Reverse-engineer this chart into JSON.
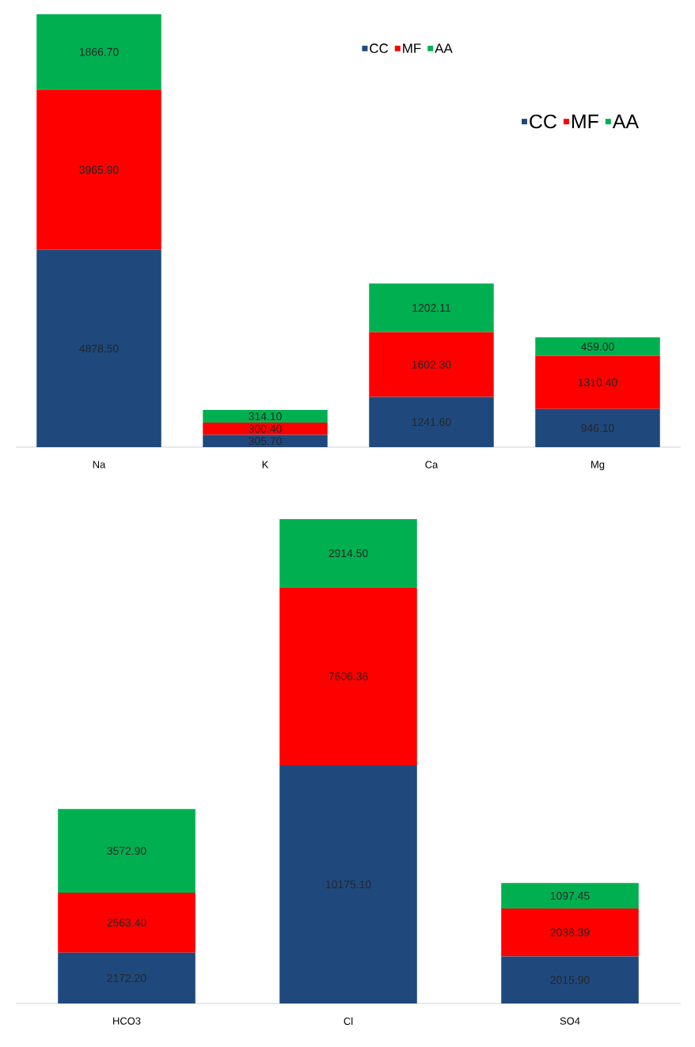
{
  "chart_data": [
    {
      "type": "bar",
      "stacked": true,
      "legend": "top",
      "categories": [
        "Na",
        "K",
        "Ca",
        "Mg"
      ],
      "series": [
        {
          "name": "CC",
          "color": "#1f497d",
          "values": [
            4878.5,
            305.7,
            1241.6,
            946.1
          ],
          "value_labels": [
            "4878.50",
            "305.70",
            "1241.60",
            "946.10"
          ]
        },
        {
          "name": "MF",
          "color": "#ff0000",
          "values": [
            3965.9,
            300.4,
            1602.3,
            1310.4
          ],
          "value_labels": [
            "3965.90",
            "300.40",
            "1602.30",
            "1310.40"
          ]
        },
        {
          "name": "AA",
          "color": "#00b050",
          "values": [
            1866.7,
            314.1,
            1202.11,
            459.0
          ],
          "value_labels": [
            "1866.70",
            "314.10",
            "1202.11",
            "459.00"
          ]
        }
      ]
    },
    {
      "type": "bar",
      "stacked": true,
      "legend": "top right",
      "categories": [
        "HCO3",
        "Cl",
        "SO4"
      ],
      "series": [
        {
          "name": "CC",
          "color": "#1f497d",
          "values": [
            2172.2,
            10175.1,
            2015.9
          ],
          "value_labels": [
            "2172.20",
            "10175.10",
            "2015.90"
          ]
        },
        {
          "name": "MF",
          "color": "#ff0000",
          "values": [
            2563.4,
            7606.36,
            2038.39
          ],
          "value_labels": [
            "2563.40",
            "7606.36",
            "2038.39"
          ]
        },
        {
          "name": "AA",
          "color": "#00b050",
          "values": [
            3572.9,
            2914.5,
            1097.45
          ],
          "value_labels": [
            "3572.90",
            "2914.50",
            "1097.45"
          ]
        }
      ]
    }
  ]
}
